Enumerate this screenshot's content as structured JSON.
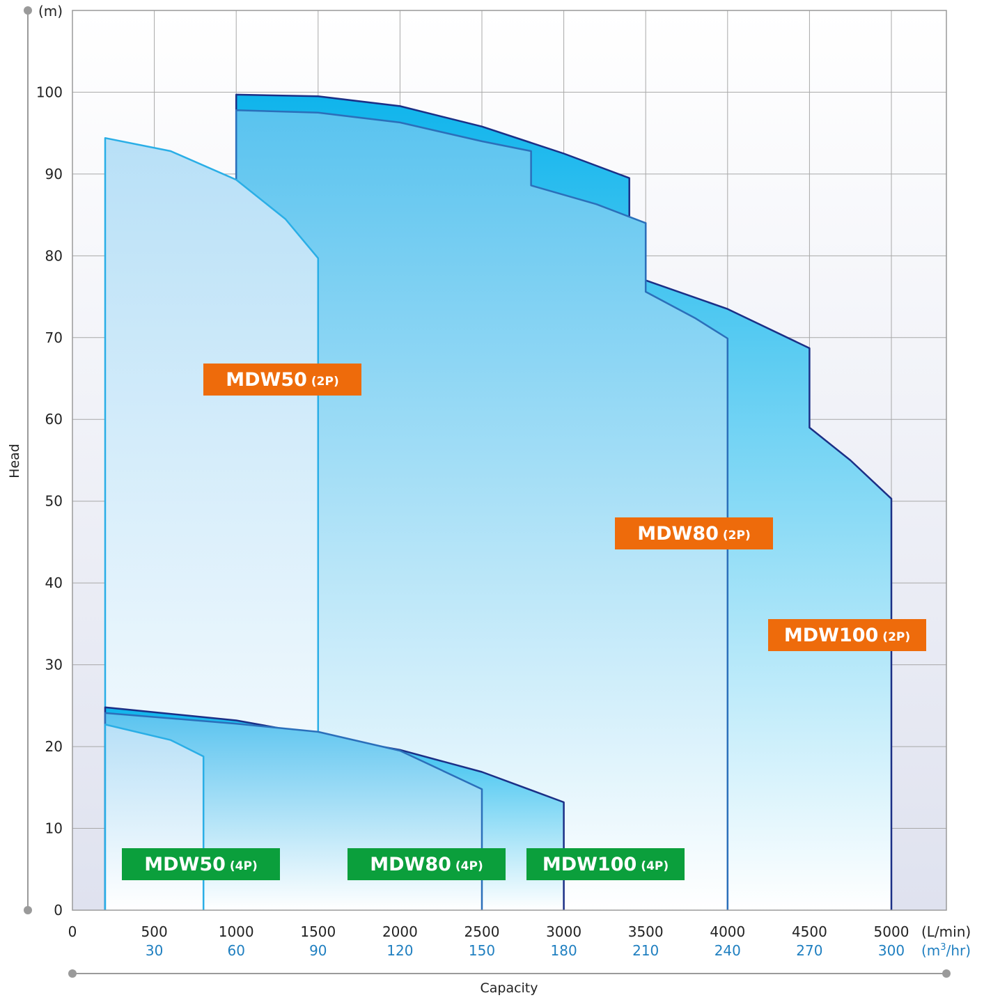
{
  "chart_data": {
    "type": "area",
    "title": "",
    "xlabel": "Capacity",
    "ylabel": "Head",
    "y_unit": "(m)",
    "x_unit": "(L/min)",
    "x_unit_secondary": "(m³/hr)",
    "xlim": [
      0,
      5400
    ],
    "ylim": [
      0,
      110
    ],
    "x_ticks": [
      {
        "value": 0,
        "label": "0",
        "label2": ""
      },
      {
        "value": 500,
        "label": "500",
        "label2": "30"
      },
      {
        "value": 1000,
        "label": "1000",
        "label2": "60"
      },
      {
        "value": 1500,
        "label": "1500",
        "label2": "90"
      },
      {
        "value": 2000,
        "label": "2000",
        "label2": "120"
      },
      {
        "value": 2500,
        "label": "2500",
        "label2": "150"
      },
      {
        "value": 3000,
        "label": "3000",
        "label2": "180"
      },
      {
        "value": 3500,
        "label": "3500",
        "label2": "210"
      },
      {
        "value": 4000,
        "label": "4000",
        "label2": "240"
      },
      {
        "value": 4500,
        "label": "4500",
        "label2": "270"
      },
      {
        "value": 5000,
        "label": "5000",
        "label2": "300"
      }
    ],
    "y_ticks": [
      0,
      10,
      20,
      30,
      40,
      50,
      60,
      70,
      80,
      90,
      100
    ],
    "grid": true,
    "series": [
      {
        "name": "MDW100 (2P)",
        "color": "#0fb4ec",
        "stroke": "#1b2f86",
        "points": [
          [
            1000,
            0
          ],
          [
            1000,
            99.7
          ],
          [
            1500,
            99.5
          ],
          [
            2000,
            98.3
          ],
          [
            2500,
            95.8
          ],
          [
            3000,
            92.5
          ],
          [
            3400,
            89.5
          ],
          [
            3400,
            84.5
          ],
          [
            3500,
            84.0
          ],
          [
            3500,
            77.0
          ],
          [
            4000,
            73.5
          ],
          [
            4500,
            68.7
          ],
          [
            4500,
            59.0
          ],
          [
            4750,
            55.0
          ],
          [
            5000,
            50.3
          ],
          [
            5000,
            0
          ]
        ]
      },
      {
        "name": "MDW80 (2P)",
        "color": "#59c3ef",
        "stroke": "#2b6fba",
        "points": [
          [
            1000,
            0
          ],
          [
            1000,
            97.8
          ],
          [
            1500,
            97.5
          ],
          [
            2000,
            96.3
          ],
          [
            2500,
            94.0
          ],
          [
            2800,
            92.8
          ],
          [
            2800,
            88.6
          ],
          [
            3200,
            86.3
          ],
          [
            3500,
            84.0
          ],
          [
            3500,
            75.6
          ],
          [
            3800,
            72.4
          ],
          [
            4000,
            69.9
          ],
          [
            4000,
            0
          ]
        ]
      },
      {
        "name": "MDW50 (2P)",
        "color": "#b8e0f7",
        "stroke": "#2aaee6",
        "points": [
          [
            200,
            0
          ],
          [
            200,
            94.4
          ],
          [
            600,
            92.8
          ],
          [
            1000,
            89.3
          ],
          [
            1300,
            84.5
          ],
          [
            1500,
            79.7
          ],
          [
            1500,
            0
          ]
        ]
      },
      {
        "name": "MDW100 (4P)",
        "color": "#0fb4ec",
        "stroke": "#1b2f86",
        "points": [
          [
            200,
            0
          ],
          [
            200,
            24.8
          ],
          [
            1000,
            23.2
          ],
          [
            2000,
            19.6
          ],
          [
            2500,
            16.9
          ],
          [
            3000,
            13.2
          ],
          [
            3000,
            0
          ]
        ]
      },
      {
        "name": "MDW80 (4P)",
        "color": "#59c3ef",
        "stroke": "#2b6fba",
        "points": [
          [
            200,
            0
          ],
          [
            200,
            24.1
          ],
          [
            1000,
            22.8
          ],
          [
            1500,
            21.8
          ],
          [
            2000,
            19.5
          ],
          [
            2500,
            14.8
          ],
          [
            2500,
            0
          ]
        ]
      },
      {
        "name": "MDW50 (4P)",
        "color": "#b8e0f7",
        "stroke": "#2aaee6",
        "points": [
          [
            200,
            0
          ],
          [
            200,
            22.7
          ],
          [
            600,
            20.8
          ],
          [
            800,
            18.8
          ],
          [
            800,
            0
          ]
        ]
      }
    ]
  },
  "labels": {
    "mdw50_2p": {
      "model": "MDW50",
      "pole": "(2P)",
      "color": "#ee6b0b"
    },
    "mdw80_2p": {
      "model": "MDW80",
      "pole": "(2P)",
      "color": "#ee6b0b"
    },
    "mdw100_2p": {
      "model": "MDW100",
      "pole": "(2P)",
      "color": "#ee6b0b"
    },
    "mdw50_4p": {
      "model": "MDW50",
      "pole": "(4P)",
      "color": "#0b9f3c"
    },
    "mdw80_4p": {
      "model": "MDW80",
      "pole": "(4P)",
      "color": "#0b9f3c"
    },
    "mdw100_4p": {
      "model": "MDW100",
      "pole": "(4P)",
      "color": "#0b9f3c"
    }
  }
}
